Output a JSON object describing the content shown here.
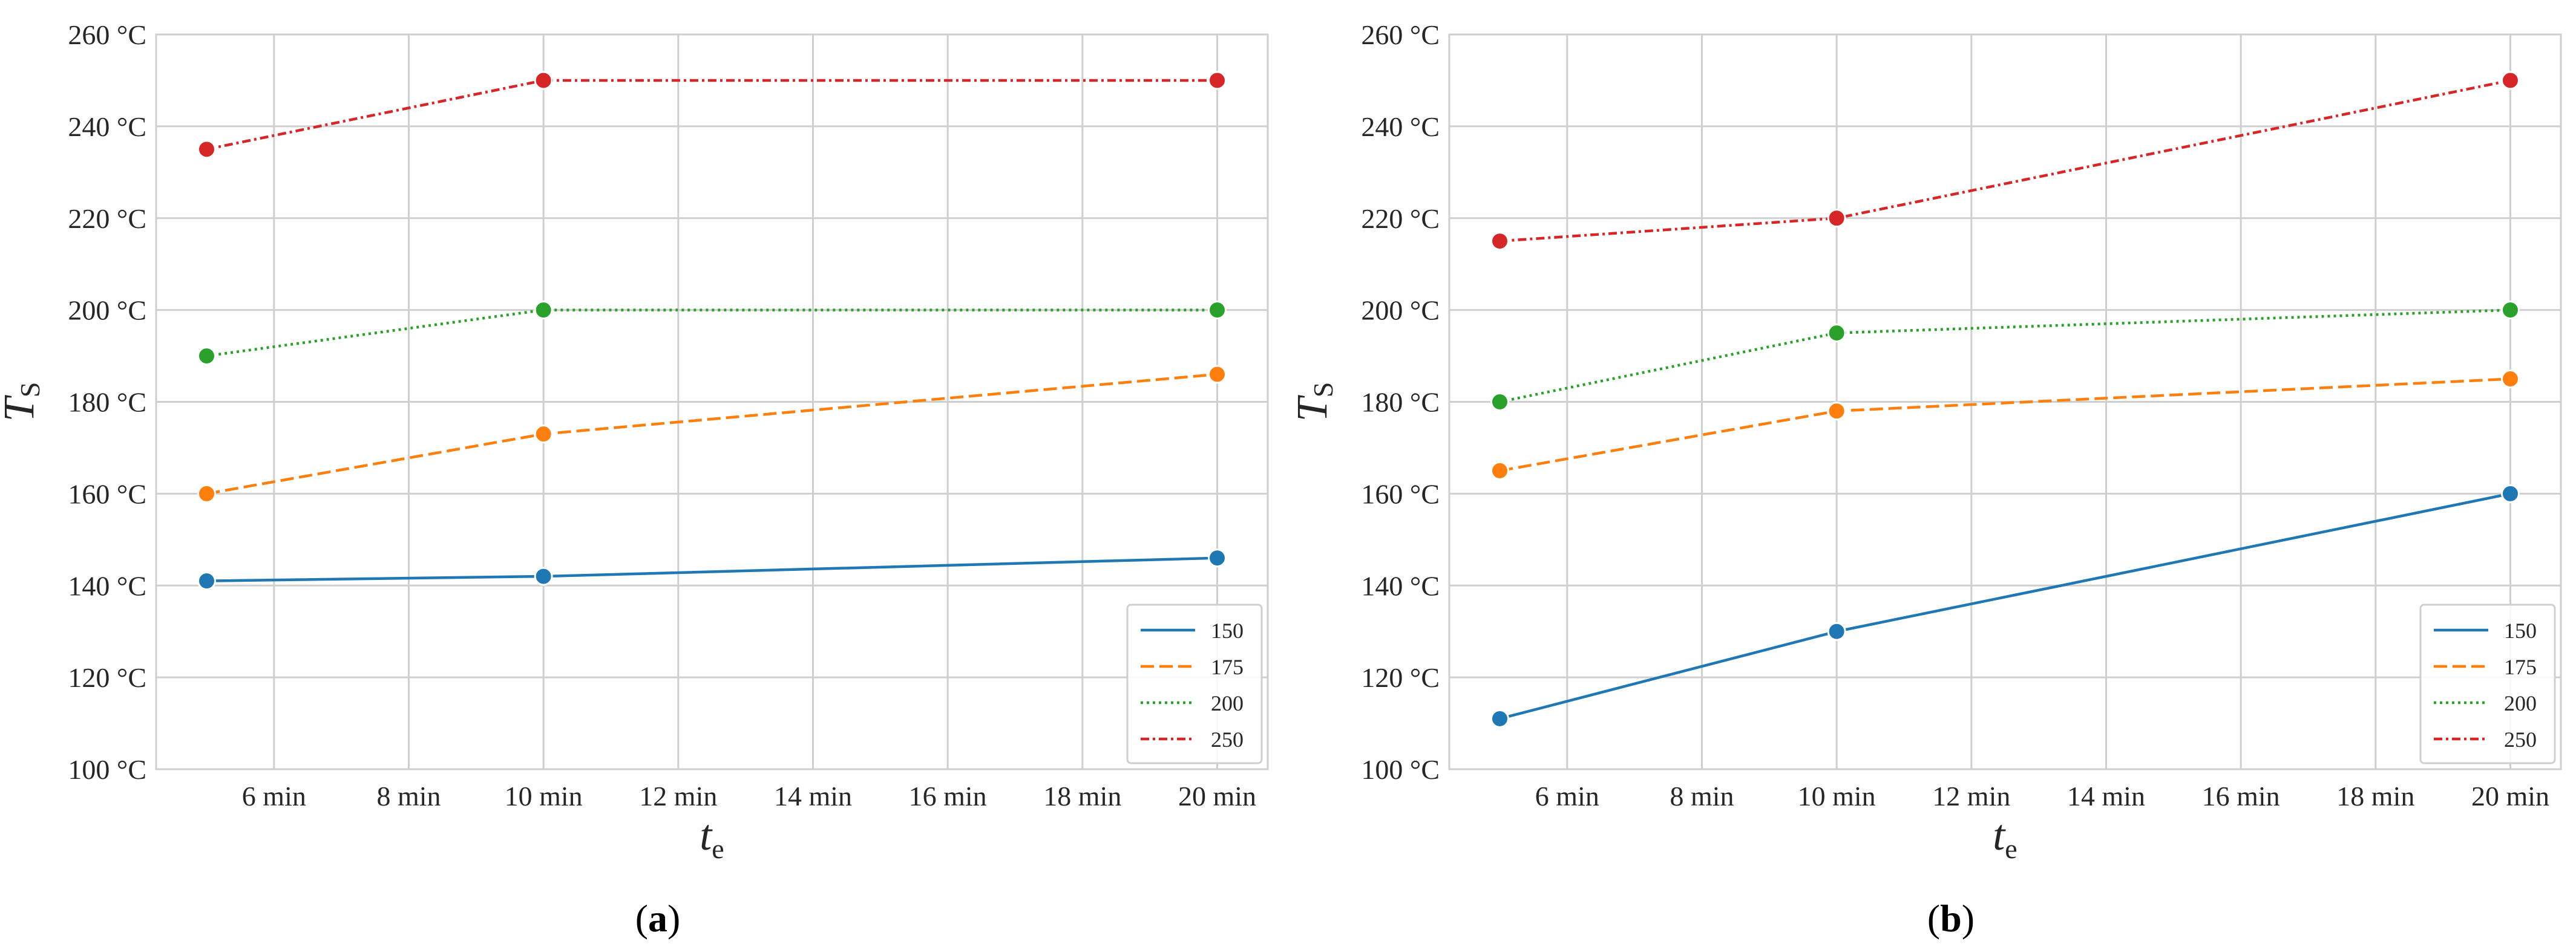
{
  "chart_data": [
    {
      "type": "line",
      "panel_label": "a",
      "x_unit": "min",
      "y_unit": "°C",
      "xlim": [
        4.25,
        20.75
      ],
      "ylim": [
        100,
        260
      ],
      "xticks": [
        6,
        8,
        10,
        12,
        14,
        16,
        18,
        20
      ],
      "yticks": [
        100,
        120,
        140,
        160,
        180,
        200,
        220,
        240,
        260
      ],
      "xlabel": "t",
      "xlabel_sub": "e",
      "ylabel": "T",
      "ylabel_sub": "S",
      "legend_position": "lower-right",
      "x": [
        5,
        10,
        20
      ],
      "series": [
        {
          "name": "150",
          "values": [
            141,
            142,
            146
          ],
          "color": "#1f77b4",
          "dash": "solid"
        },
        {
          "name": "175",
          "values": [
            160,
            173,
            186
          ],
          "color": "#ff7f0e",
          "dash": "dashed"
        },
        {
          "name": "200",
          "values": [
            190,
            200,
            200
          ],
          "color": "#2ca02c",
          "dash": "dotted"
        },
        {
          "name": "250",
          "values": [
            235,
            250,
            250
          ],
          "color": "#d62728",
          "dash": "dashdot"
        }
      ]
    },
    {
      "type": "line",
      "panel_label": "b",
      "x_unit": "min",
      "y_unit": "°C",
      "xlim": [
        4.25,
        20.75
      ],
      "ylim": [
        100,
        260
      ],
      "xticks": [
        6,
        8,
        10,
        12,
        14,
        16,
        18,
        20
      ],
      "yticks": [
        100,
        120,
        140,
        160,
        180,
        200,
        220,
        240,
        260
      ],
      "xlabel": "t",
      "xlabel_sub": "e",
      "ylabel": "T",
      "ylabel_sub": "S",
      "legend_position": "lower-right",
      "x": [
        5,
        10,
        20
      ],
      "series": [
        {
          "name": "150",
          "values": [
            111,
            130,
            160
          ],
          "color": "#1f77b4",
          "dash": "solid"
        },
        {
          "name": "175",
          "values": [
            165,
            178,
            185
          ],
          "color": "#ff7f0e",
          "dash": "dashed"
        },
        {
          "name": "200",
          "values": [
            180,
            195,
            200
          ],
          "color": "#2ca02c",
          "dash": "dotted"
        },
        {
          "name": "250",
          "values": [
            215,
            220,
            250
          ],
          "color": "#d62728",
          "dash": "dashdot"
        }
      ]
    }
  ]
}
